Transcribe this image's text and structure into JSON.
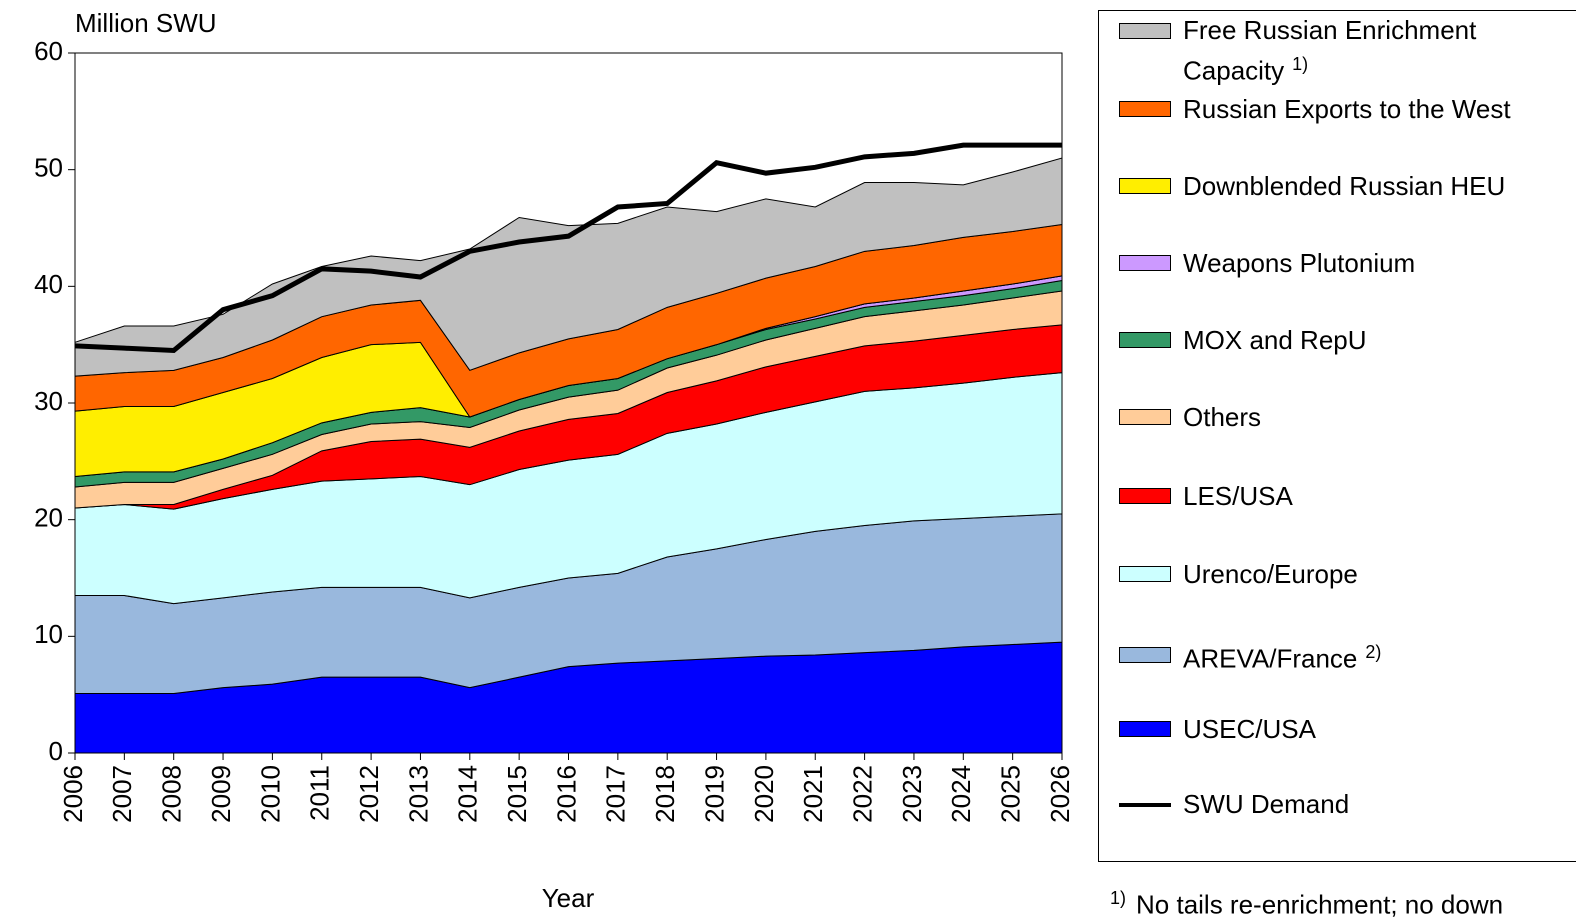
{
  "chart_data": {
    "type": "stacked_area",
    "y_label": "Million SWU",
    "x_label": "Year",
    "x": [
      2006,
      2007,
      2008,
      2009,
      2010,
      2011,
      2012,
      2013,
      2014,
      2015,
      2016,
      2017,
      2018,
      2019,
      2020,
      2021,
      2022,
      2023,
      2024,
      2025,
      2026
    ],
    "xlim": [
      2006,
      2026
    ],
    "ylim": [
      0,
      60
    ],
    "yticks": [
      0,
      10,
      20,
      30,
      40,
      50,
      60
    ],
    "series": [
      {
        "name": "USEC/USA",
        "color": "#0000ff",
        "values": [
          5.1,
          5.1,
          5.1,
          5.6,
          5.9,
          6.5,
          6.5,
          6.5,
          5.6,
          6.5,
          7.4,
          7.7,
          7.9,
          8.1,
          8.3,
          8.4,
          8.6,
          8.8,
          9.1,
          9.3,
          9.5
        ]
      },
      {
        "name": "AREVA/France",
        "note": "2)",
        "color": "#99b8dd",
        "values": [
          8.4,
          8.4,
          7.7,
          7.7,
          7.9,
          7.7,
          7.7,
          7.7,
          7.7,
          7.7,
          7.6,
          7.7,
          8.9,
          9.4,
          10.0,
          10.6,
          10.9,
          11.1,
          11.0,
          11.0,
          11.0
        ]
      },
      {
        "name": "Urenco/Europe",
        "color": "#ccffff",
        "values": [
          7.5,
          7.8,
          8.1,
          8.5,
          8.8,
          9.1,
          9.3,
          9.5,
          9.7,
          10.1,
          10.1,
          10.2,
          10.6,
          10.7,
          10.9,
          11.1,
          11.5,
          11.4,
          11.6,
          11.9,
          12.1
        ]
      },
      {
        "name": "LES/USA",
        "color": "#ff0000",
        "values": [
          0,
          0,
          0.4,
          0.8,
          1.2,
          2.6,
          3.2,
          3.2,
          3.2,
          3.3,
          3.5,
          3.5,
          3.5,
          3.7,
          3.9,
          3.9,
          3.9,
          4.0,
          4.1,
          4.1,
          4.1
        ]
      },
      {
        "name": "Others",
        "color": "#ffcc99",
        "values": [
          1.8,
          1.9,
          1.9,
          1.8,
          1.8,
          1.4,
          1.5,
          1.5,
          1.7,
          1.8,
          1.9,
          2.0,
          2.1,
          2.2,
          2.3,
          2.4,
          2.5,
          2.6,
          2.6,
          2.7,
          2.9
        ]
      },
      {
        "name": "MOX and RepU",
        "color": "#339966",
        "values": [
          0.9,
          0.9,
          0.9,
          0.8,
          1.0,
          1.0,
          1.0,
          1.2,
          0.9,
          0.9,
          1.0,
          1.0,
          0.8,
          0.9,
          0.9,
          0.8,
          0.8,
          0.8,
          0.8,
          0.8,
          0.9
        ]
      },
      {
        "name": "Weapons Plutonium",
        "color": "#cc99ff",
        "values": [
          0,
          0,
          0,
          0,
          0,
          0,
          0,
          0,
          0,
          0,
          0,
          0,
          0,
          0,
          0.1,
          0.2,
          0.3,
          0.3,
          0.4,
          0.4,
          0.4
        ]
      },
      {
        "name": "Downblended Russian HEU",
        "color": "#ffee00",
        "values": [
          5.6,
          5.6,
          5.6,
          5.7,
          5.5,
          5.6,
          5.8,
          5.6,
          0,
          0,
          0,
          0,
          0,
          0,
          0,
          0,
          0,
          0,
          0,
          0,
          0
        ]
      },
      {
        "name": "Russian Exports to the West",
        "color": "#ff6600",
        "values": [
          3.0,
          2.9,
          3.1,
          3.0,
          3.3,
          3.5,
          3.4,
          3.6,
          4.0,
          4.0,
          4.0,
          4.2,
          4.4,
          4.4,
          4.3,
          4.3,
          4.5,
          4.5,
          4.6,
          4.5,
          4.4
        ]
      },
      {
        "name": "Free Russian Enrichment Capacity",
        "note": "1)",
        "color": "#c0c0c0",
        "values": [
          2.9,
          4.0,
          3.8,
          3.7,
          4.8,
          4.3,
          4.2,
          3.4,
          10.4,
          11.6,
          9.7,
          9.1,
          8.6,
          7.0,
          6.8,
          5.1,
          5.9,
          5.4,
          4.5,
          5.1,
          5.7
        ]
      }
    ],
    "demand": {
      "name": "SWU Demand",
      "color": "#000000",
      "values": [
        34.9,
        34.7,
        34.5,
        38.0,
        39.2,
        41.5,
        41.3,
        40.8,
        43.0,
        43.8,
        44.3,
        46.8,
        47.1,
        50.6,
        49.7,
        50.2,
        51.1,
        51.4,
        52.1,
        52.1,
        52.1
      ]
    },
    "footnote": {
      "marker": "1)",
      "text": "No tails re-enrichment; no down"
    }
  }
}
